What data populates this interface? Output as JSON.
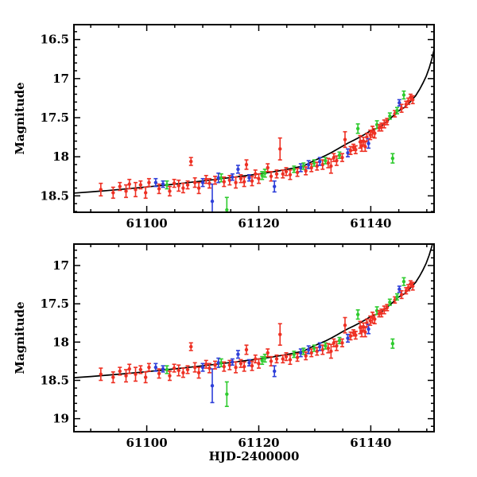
{
  "figure": {
    "background": "#ffffff",
    "frame_color": "#000000",
    "curve_color": "#000000",
    "xlabel": "HJD-2400000",
    "ylabel": "Magnitude"
  },
  "chart_data": {
    "type": "scatter",
    "title": "",
    "xlabel": "HJD-2400000",
    "ylabel": "Magnitude",
    "x_axis": {
      "range": [
        61087.0,
        61151.3
      ],
      "major_ticks": [
        {
          "v": 61100,
          "label": "61100"
        },
        {
          "v": 61120,
          "label": "61120"
        },
        {
          "v": 61140,
          "label": "61140"
        }
      ],
      "minor_step": 5
    },
    "panels": [
      {
        "name": "top",
        "ylabel": "Magnitude",
        "y_range": [
          16.31,
          18.71
        ],
        "y_inverted_magnitude_axis": true,
        "major_ticks": [
          {
            "v": 16.5,
            "label": "16.5"
          },
          {
            "v": 17.0,
            "label": "17"
          },
          {
            "v": 17.5,
            "label": "17.5"
          },
          {
            "v": 18.0,
            "label": "18"
          },
          {
            "v": 18.5,
            "label": "18.5"
          }
        ],
        "minor_step": 0.1
      },
      {
        "name": "bottom",
        "ylabel": "Magnitude",
        "y_range": [
          16.72,
          19.17
        ],
        "y_inverted_magnitude_axis": true,
        "major_ticks": [
          {
            "v": 17.0,
            "label": "17"
          },
          {
            "v": 17.5,
            "label": "17.5"
          },
          {
            "v": 18.0,
            "label": "18"
          },
          {
            "v": 18.5,
            "label": "18.5"
          },
          {
            "v": 19.0,
            "label": "19"
          }
        ],
        "minor_step": 0.1
      }
    ],
    "series_colors": {
      "r": "#ee3023",
      "g": "#2ecb2e",
      "b": "#2e3fd9"
    },
    "legend": {
      "visible": false
    },
    "grid": false,
    "model_curve": [
      [
        61087,
        18.465
      ],
      [
        61090,
        18.45
      ],
      [
        61093,
        18.432
      ],
      [
        61096,
        18.413
      ],
      [
        61099,
        18.393
      ],
      [
        61102,
        18.372
      ],
      [
        61105,
        18.35
      ],
      [
        61108,
        18.326
      ],
      [
        61111,
        18.301
      ],
      [
        61114,
        18.275
      ],
      [
        61117,
        18.248
      ],
      [
        61120,
        18.22
      ],
      [
        61122,
        18.199
      ],
      [
        61124,
        18.175
      ],
      [
        61126,
        18.148
      ],
      [
        61128,
        18.117
      ],
      [
        61130,
        18.045
      ],
      [
        61131,
        18.015
      ],
      [
        61132,
        17.982
      ],
      [
        61133,
        17.945
      ],
      [
        61134,
        17.905
      ],
      [
        61135,
        17.862
      ],
      [
        61136,
        17.823
      ],
      [
        61137,
        17.788
      ],
      [
        61138,
        17.75
      ],
      [
        61139,
        17.71
      ],
      [
        61140,
        17.666
      ],
      [
        61141,
        17.638
      ],
      [
        61142,
        17.6
      ],
      [
        61143,
        17.541
      ],
      [
        61144,
        17.477
      ],
      [
        61145,
        17.41
      ],
      [
        61146,
        17.37
      ],
      [
        61147,
        17.3
      ],
      [
        61148,
        17.22
      ],
      [
        61148.7,
        17.14
      ],
      [
        61149.3,
        17.06
      ],
      [
        61149.9,
        16.97
      ],
      [
        61150.4,
        16.87
      ],
      [
        61150.9,
        16.75
      ],
      [
        61151.4,
        16.6
      ]
    ],
    "points": [
      [
        61091.8,
        18.42,
        0.08,
        "r"
      ],
      [
        61094.0,
        18.46,
        0.07,
        "r"
      ],
      [
        61095.2,
        18.38,
        0.05,
        "r"
      ],
      [
        61096.3,
        18.44,
        0.08,
        "r"
      ],
      [
        61096.9,
        18.35,
        0.06,
        "r"
      ],
      [
        61098.0,
        18.42,
        0.09,
        "r"
      ],
      [
        61098.9,
        18.36,
        0.05,
        "r"
      ],
      [
        61099.8,
        18.46,
        0.07,
        "r"
      ],
      [
        61100.4,
        18.33,
        0.05,
        "r"
      ],
      [
        61101.6,
        18.33,
        0.05,
        "b"
      ],
      [
        61102.2,
        18.41,
        0.06,
        "r"
      ],
      [
        61102.9,
        18.35,
        0.04,
        "b"
      ],
      [
        61103.6,
        18.36,
        0.05,
        "g"
      ],
      [
        61104.1,
        18.44,
        0.06,
        "r"
      ],
      [
        61104.9,
        18.34,
        0.05,
        "r"
      ],
      [
        61105.7,
        18.37,
        0.07,
        "r"
      ],
      [
        61106.5,
        18.4,
        0.06,
        "r"
      ],
      [
        61107.3,
        18.36,
        0.05,
        "r"
      ],
      [
        61107.9,
        18.06,
        0.05,
        "r"
      ],
      [
        61108.6,
        18.33,
        0.06,
        "r"
      ],
      [
        61109.3,
        18.4,
        0.07,
        "r"
      ],
      [
        61110.0,
        18.33,
        0.05,
        "b"
      ],
      [
        61110.6,
        18.29,
        0.05,
        "r"
      ],
      [
        61111.2,
        18.34,
        0.06,
        "r"
      ],
      [
        61111.7,
        18.57,
        0.22,
        "b"
      ],
      [
        61112.2,
        18.3,
        0.05,
        "r"
      ],
      [
        61112.8,
        18.27,
        0.06,
        "b"
      ],
      [
        61113.3,
        18.27,
        0.05,
        "g"
      ],
      [
        61113.8,
        18.32,
        0.06,
        "r"
      ],
      [
        61114.3,
        18.68,
        0.16,
        "g"
      ],
      [
        61114.8,
        18.3,
        0.06,
        "r"
      ],
      [
        61115.3,
        18.26,
        0.04,
        "b"
      ],
      [
        61115.9,
        18.33,
        0.07,
        "r"
      ],
      [
        61116.3,
        18.16,
        0.05,
        "b"
      ],
      [
        61116.8,
        18.28,
        0.05,
        "r"
      ],
      [
        61117.4,
        18.32,
        0.06,
        "r"
      ],
      [
        61117.8,
        18.1,
        0.06,
        "r"
      ],
      [
        61118.3,
        18.27,
        0.04,
        "b"
      ],
      [
        61118.8,
        18.31,
        0.06,
        "r"
      ],
      [
        61119.4,
        18.22,
        0.05,
        "r"
      ],
      [
        61120.0,
        18.28,
        0.06,
        "r"
      ],
      [
        61120.6,
        18.24,
        0.05,
        "g"
      ],
      [
        61121.1,
        18.21,
        0.05,
        "g"
      ],
      [
        61121.6,
        18.14,
        0.05,
        "r"
      ],
      [
        61122.2,
        18.25,
        0.06,
        "r"
      ],
      [
        61122.8,
        18.38,
        0.07,
        "b"
      ],
      [
        61123.2,
        18.22,
        0.05,
        "r"
      ],
      [
        61123.8,
        17.9,
        0.14,
        "r"
      ],
      [
        61124.3,
        18.22,
        0.05,
        "r"
      ],
      [
        61124.9,
        18.19,
        0.05,
        "r"
      ],
      [
        61125.6,
        18.23,
        0.06,
        "r"
      ],
      [
        61126.3,
        18.16,
        0.04,
        "g"
      ],
      [
        61126.9,
        18.2,
        0.05,
        "r"
      ],
      [
        61127.5,
        18.14,
        0.05,
        "b"
      ],
      [
        61128.0,
        18.12,
        0.04,
        "g"
      ],
      [
        61128.4,
        18.18,
        0.05,
        "r"
      ],
      [
        61128.9,
        18.1,
        0.05,
        "b"
      ],
      [
        61129.4,
        18.14,
        0.05,
        "r"
      ],
      [
        61129.9,
        18.08,
        0.04,
        "g"
      ],
      [
        61130.4,
        18.12,
        0.05,
        "r"
      ],
      [
        61130.9,
        18.06,
        0.05,
        "b"
      ],
      [
        61131.4,
        18.1,
        0.06,
        "r"
      ],
      [
        61131.9,
        18.05,
        0.04,
        "g"
      ],
      [
        61132.4,
        18.08,
        0.06,
        "r"
      ],
      [
        61132.9,
        18.12,
        0.09,
        "r"
      ],
      [
        61133.4,
        18.01,
        0.05,
        "r"
      ],
      [
        61133.9,
        18.05,
        0.06,
        "r"
      ],
      [
        61134.4,
        17.98,
        0.04,
        "g"
      ],
      [
        61134.9,
        18.01,
        0.05,
        "r"
      ],
      [
        61135.4,
        17.78,
        0.1,
        "r"
      ],
      [
        61135.9,
        17.95,
        0.05,
        "b"
      ],
      [
        61136.4,
        17.92,
        0.05,
        "r"
      ],
      [
        61136.9,
        17.88,
        0.04,
        "r"
      ],
      [
        61137.3,
        17.91,
        0.05,
        "r"
      ],
      [
        61137.7,
        17.64,
        0.06,
        "g"
      ],
      [
        61138.1,
        17.81,
        0.08,
        "r"
      ],
      [
        61138.4,
        17.86,
        0.07,
        "r"
      ],
      [
        61138.7,
        17.8,
        0.05,
        "r"
      ],
      [
        61139.0,
        17.87,
        0.06,
        "r"
      ],
      [
        61139.3,
        17.75,
        0.05,
        "r"
      ],
      [
        61139.6,
        17.83,
        0.06,
        "b"
      ],
      [
        61139.9,
        17.72,
        0.06,
        "r"
      ],
      [
        61140.3,
        17.68,
        0.07,
        "r"
      ],
      [
        61140.7,
        17.7,
        0.06,
        "r"
      ],
      [
        61141.1,
        17.59,
        0.05,
        "g"
      ],
      [
        61141.5,
        17.63,
        0.04,
        "r"
      ],
      [
        61141.9,
        17.62,
        0.05,
        "r"
      ],
      [
        61142.4,
        17.58,
        0.05,
        "r"
      ],
      [
        61142.9,
        17.55,
        0.04,
        "r"
      ],
      [
        61143.4,
        17.48,
        0.04,
        "g"
      ],
      [
        61143.9,
        18.02,
        0.06,
        "g"
      ],
      [
        61144.3,
        17.45,
        0.04,
        "r"
      ],
      [
        61144.7,
        17.41,
        0.04,
        "g"
      ],
      [
        61145.1,
        17.31,
        0.04,
        "b"
      ],
      [
        61145.5,
        17.38,
        0.05,
        "r"
      ],
      [
        61145.9,
        17.21,
        0.05,
        "g"
      ],
      [
        61146.3,
        17.33,
        0.04,
        "r"
      ],
      [
        61146.7,
        17.29,
        0.04,
        "r"
      ],
      [
        61147.1,
        17.24,
        0.04,
        "r"
      ],
      [
        61147.5,
        17.27,
        0.05,
        "r"
      ]
    ]
  }
}
